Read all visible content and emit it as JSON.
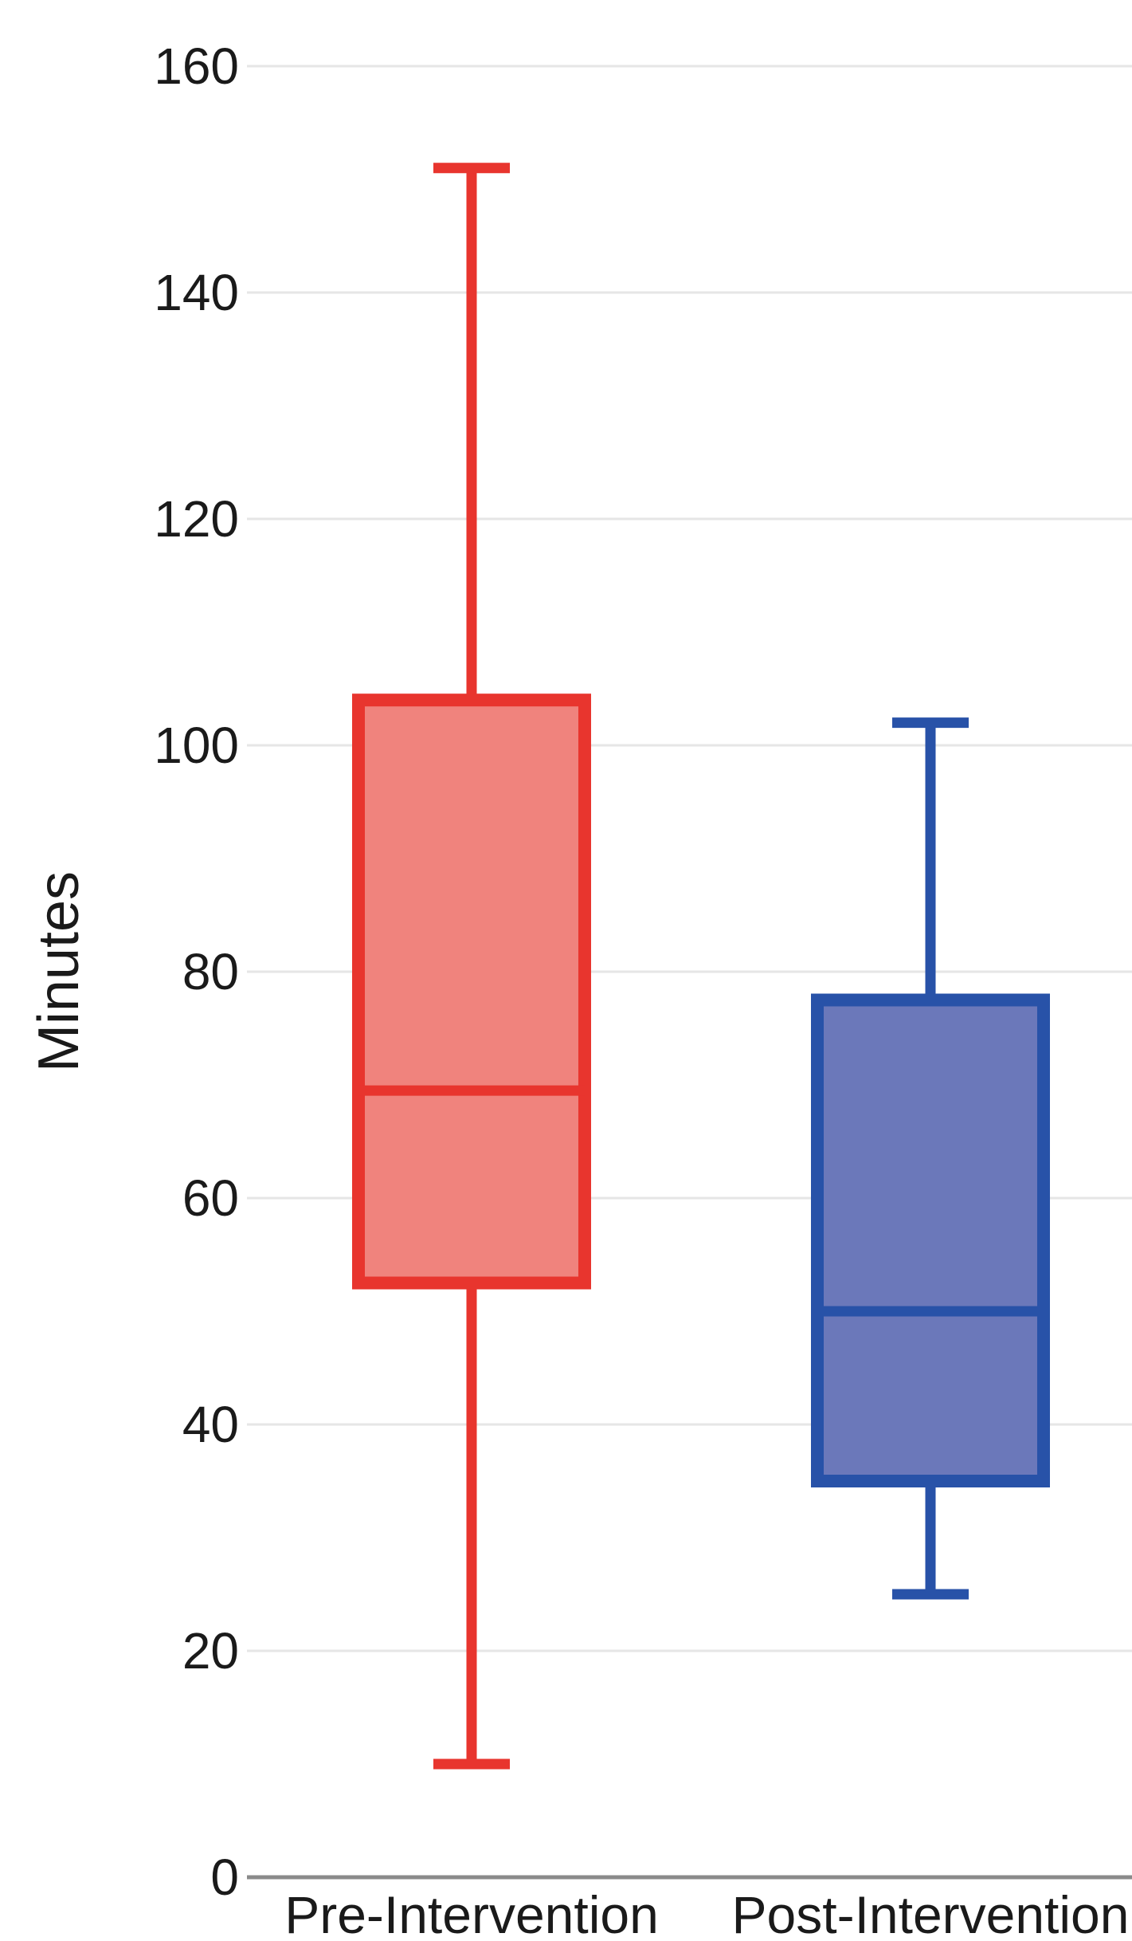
{
  "chart_data": {
    "type": "box",
    "ylabel": "Minutes",
    "xlabel": "",
    "title": "",
    "ylim": [
      0,
      160
    ],
    "yticks": [
      "0",
      "20",
      "40",
      "60",
      "80",
      "100",
      "120",
      "140",
      "160"
    ],
    "grid": true,
    "categories": [
      "Pre-Intervention",
      "Post-Intervention"
    ],
    "boxes": [
      {
        "category": "Pre-Intervention",
        "min": 10,
        "q1": 52.5,
        "median": 69.5,
        "q3": 104,
        "max": 151,
        "stroke": "#e8352e",
        "fill": "#f0837d"
      },
      {
        "category": "Post-Intervention",
        "min": 25,
        "q1": 35,
        "median": 50,
        "q3": 77.5,
        "max": 102,
        "stroke": "#2852a8",
        "fill": "#6b78ba"
      }
    ]
  }
}
